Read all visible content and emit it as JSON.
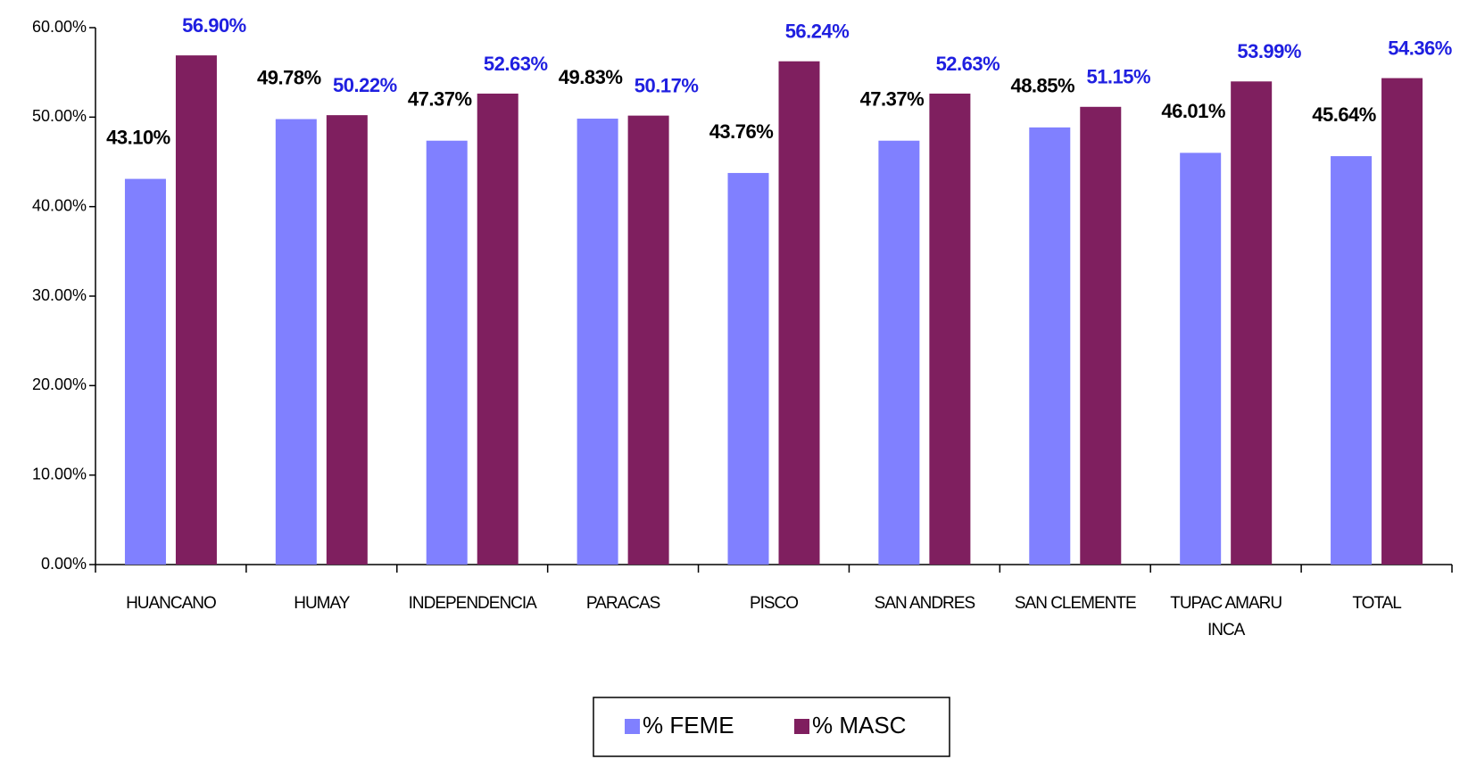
{
  "chart_data": {
    "type": "bar",
    "categories": [
      "HUANCANO",
      "HUMAY",
      "INDEPENDENCIA",
      "PARACAS",
      "PISCO",
      "SAN ANDRES",
      "SAN CLEMENTE",
      "TUPAC AMARU INCA",
      "TOTAL"
    ],
    "series": [
      {
        "name": "% FEME",
        "color": "#8080ff",
        "label_color": "#000000",
        "values": [
          43.1,
          49.78,
          47.37,
          49.83,
          43.76,
          47.37,
          48.85,
          46.01,
          45.64
        ],
        "value_labels": [
          "43.10%",
          "49.78%",
          "47.37%",
          "49.83%",
          "43.76%",
          "47.37%",
          "48.85%",
          "46.01%",
          "45.64%"
        ]
      },
      {
        "name": "% MASC",
        "color": "#7f1f5f",
        "label_color": "#1f1fe0",
        "values": [
          56.9,
          50.22,
          52.63,
          50.17,
          56.24,
          52.63,
          51.15,
          53.99,
          54.36
        ],
        "value_labels": [
          "56.90%",
          "50.22%",
          "52.63%",
          "50.17%",
          "56.24%",
          "52.63%",
          "51.15%",
          "53.99%",
          "54.36%"
        ]
      }
    ],
    "ylim": [
      0,
      60
    ],
    "yticks": [
      {
        "value": 0,
        "label": "0.00%"
      },
      {
        "value": 10,
        "label": "10.00%"
      },
      {
        "value": 20,
        "label": "20.00%"
      },
      {
        "value": 30,
        "label": "30.00%"
      },
      {
        "value": 40,
        "label": "40.00%"
      },
      {
        "value": 50,
        "label": "50.00%"
      },
      {
        "value": 60,
        "label": "60.00%"
      }
    ],
    "grid": false,
    "legend": "bottom"
  }
}
